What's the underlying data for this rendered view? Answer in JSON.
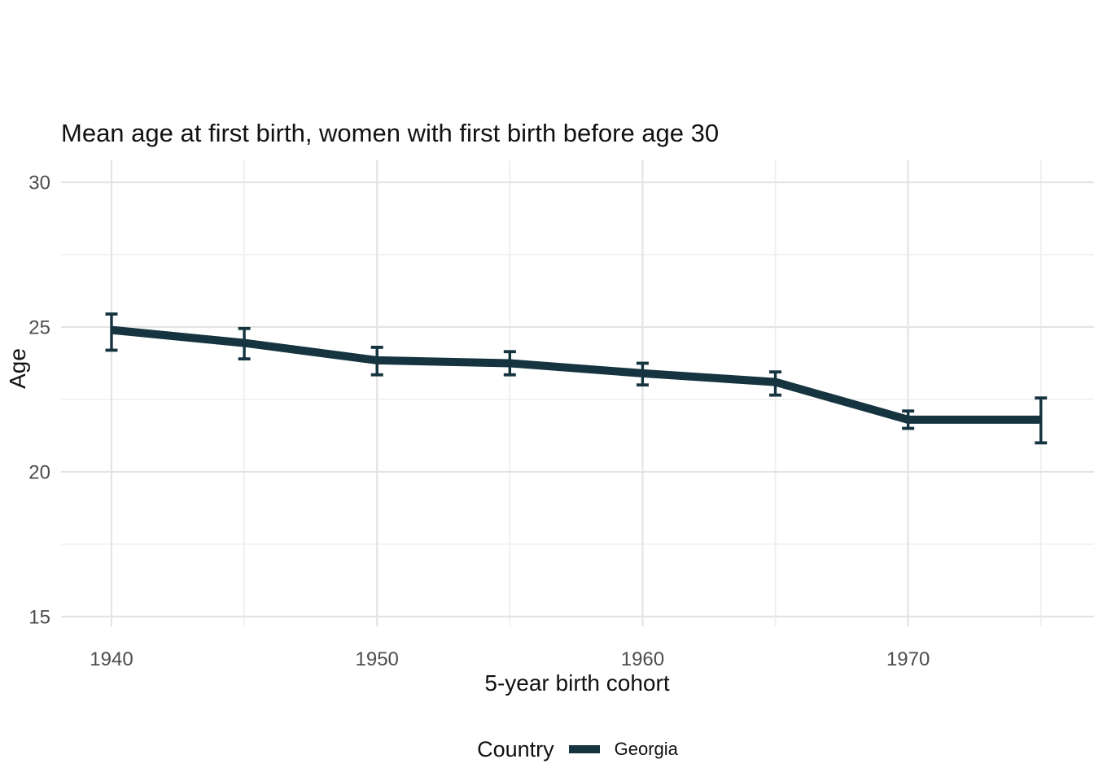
{
  "chart_data": {
    "type": "line",
    "title": "Mean age at first birth, women with first birth before age 30",
    "xlabel": "5-year birth cohort",
    "ylabel": "Age",
    "x": [
      1940,
      1945,
      1950,
      1955,
      1960,
      1965,
      1970,
      1975
    ],
    "series": [
      {
        "name": "Georgia",
        "color": "#15343f",
        "values": [
          24.9,
          24.45,
          23.85,
          23.75,
          23.4,
          23.1,
          21.8,
          21.8
        ],
        "ci_low": [
          24.2,
          23.9,
          23.35,
          23.35,
          23.0,
          22.65,
          21.5,
          21.0
        ],
        "ci_high": [
          25.45,
          24.95,
          24.3,
          24.15,
          23.75,
          23.45,
          22.1,
          22.55
        ]
      }
    ],
    "error_bars": true,
    "x_ticks": [
      1940,
      1950,
      1960,
      1970
    ],
    "x_minor_ticks": [
      1945,
      1955,
      1965,
      1975
    ],
    "y_ticks": [
      15,
      20,
      25,
      30
    ],
    "y_minor_ticks": [
      17.5,
      22.5,
      27.5
    ],
    "xlim": [
      1938.1,
      1977
    ],
    "ylim": [
      14.66,
      30.76
    ],
    "grid": true,
    "legend_position": "bottom"
  },
  "legend": {
    "title": "Country",
    "items": [
      {
        "label": "Georgia"
      }
    ]
  },
  "colors": {
    "line": "#15343f",
    "grid_major": "#e4e4e4",
    "grid_minor": "#eeeeee",
    "tick_label": "#4d4d4d",
    "text": "#111111",
    "background": "#ffffff"
  }
}
